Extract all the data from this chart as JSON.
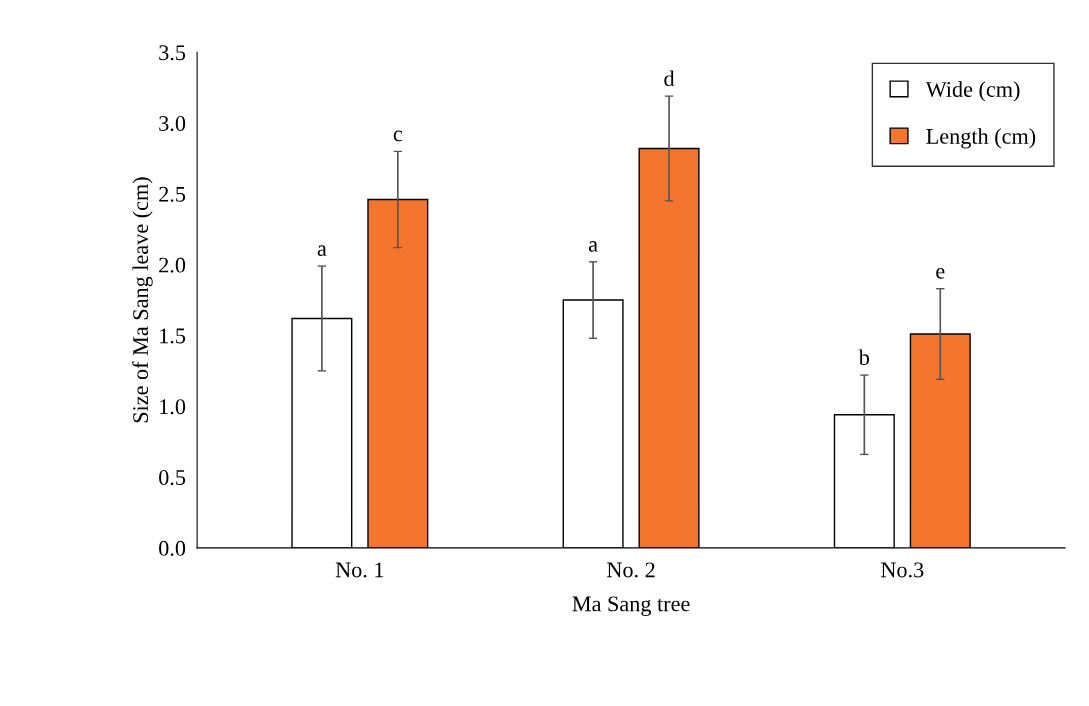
{
  "chart_data": {
    "type": "bar",
    "xlabel": "Ma Sang tree",
    "ylabel": "Size of Ma Sang leave (cm)",
    "categories": [
      "No. 1",
      "No. 2",
      "No.3"
    ],
    "series": [
      {
        "name": "Wide (cm)",
        "color": "#ffffff",
        "values": [
          1.62,
          1.75,
          0.94
        ],
        "errors": [
          0.37,
          0.27,
          0.28
        ]
      },
      {
        "name": "Length (cm)",
        "color": "#f4762e",
        "values": [
          2.46,
          2.82,
          1.51
        ],
        "errors": [
          0.34,
          0.37,
          0.32
        ]
      }
    ],
    "ylim": [
      0,
      3.5
    ],
    "yticks": [
      {
        "value": 0,
        "label": "0.0"
      },
      {
        "value": 0.5,
        "label": "0.5"
      },
      {
        "value": 1,
        "label": "1.0"
      },
      {
        "value": 1.5,
        "label": "1.5"
      },
      {
        "value": 2,
        "label": "2.0"
      },
      {
        "value": 2.5,
        "label": "2.5"
      },
      {
        "value": 3,
        "label": "3.0"
      },
      {
        "value": 3.5,
        "label": "3.5"
      }
    ],
    "annotations": [
      "a",
      "c",
      "a",
      "d",
      "b",
      "e"
    ],
    "legend": "top right",
    "grid": false
  }
}
